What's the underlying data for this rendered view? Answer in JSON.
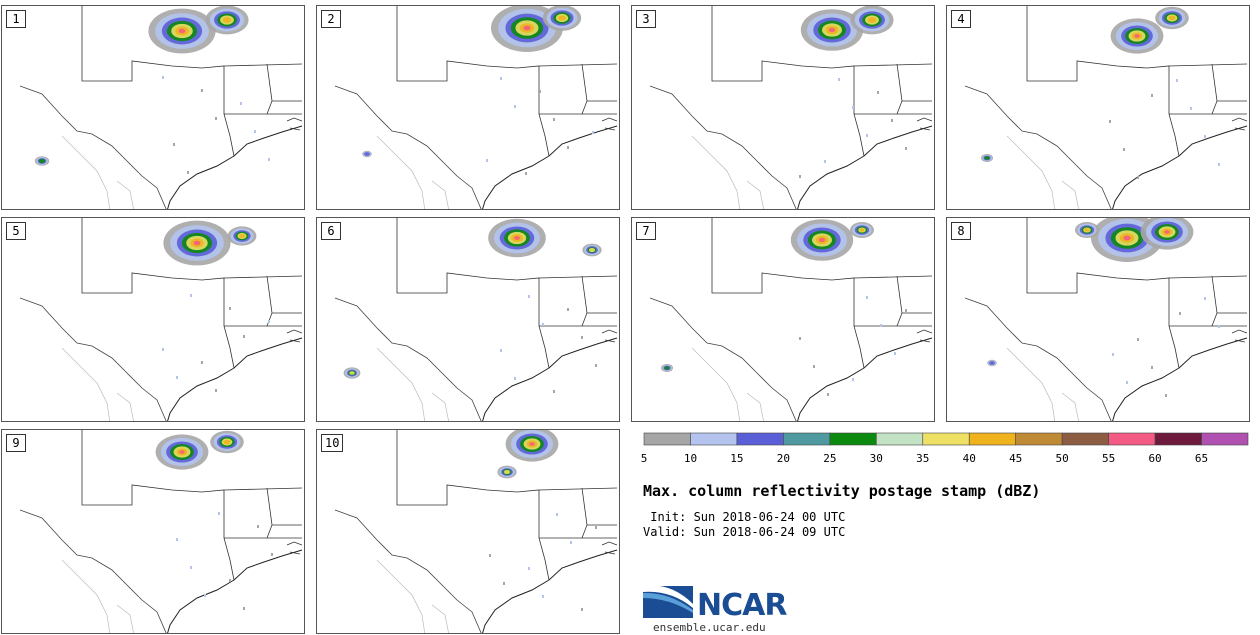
{
  "panels": [
    {
      "label": "1"
    },
    {
      "label": "2"
    },
    {
      "label": "3"
    },
    {
      "label": "4"
    },
    {
      "label": "5"
    },
    {
      "label": "6"
    },
    {
      "label": "7"
    },
    {
      "label": "8"
    },
    {
      "label": "9"
    },
    {
      "label": "10"
    }
  ],
  "colorbar": {
    "ticks": [
      "5",
      "10",
      "15",
      "20",
      "25",
      "30",
      "35",
      "40",
      "45",
      "50",
      "55",
      "60",
      "65"
    ],
    "colors": [
      "#a6a6a6",
      "#b4c4ee",
      "#5a5fd8",
      "#4e9aa0",
      "#0c8a10",
      "#c3e2c3",
      "#ede064",
      "#f0b21d",
      "#bf8a35",
      "#8c5d42",
      "#f45b84",
      "#6d1a3d",
      "#b050b0"
    ]
  },
  "title": "Max. column reflectivity postage stamp (dBZ)",
  "init": " Init: Sun 2018-06-24 00 UTC",
  "valid": "Valid: Sun 2018-06-24 09 UTC",
  "logo": {
    "name": "NCAR",
    "url": "ensemble.ucar.edu"
  }
}
